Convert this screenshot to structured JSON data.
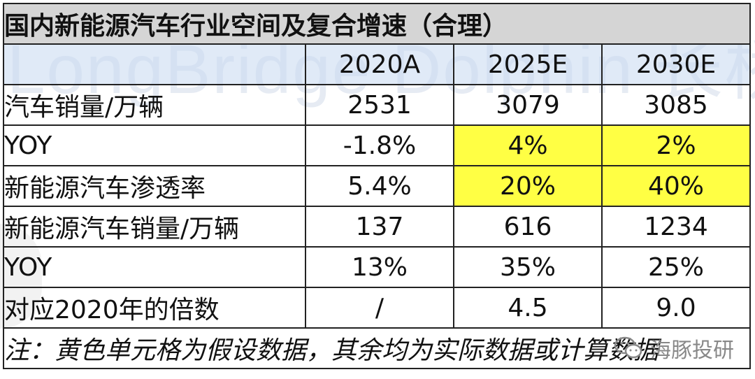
{
  "table": {
    "title": "国内新能源汽车行业空间及复合增速（合理）",
    "headers": [
      "",
      "2020A",
      "2025E",
      "2030E"
    ],
    "rows": [
      {
        "label": "汽车销量/万辆",
        "values": [
          "2531",
          "3079",
          "3085"
        ]
      },
      {
        "label": "YOY",
        "values": [
          "-1.8%",
          "4%",
          "2%"
        ]
      },
      {
        "label": "新能源汽车渗透率",
        "values": [
          "5.4%",
          "20%",
          "40%"
        ]
      },
      {
        "label": "新能源汽车销量/万辆",
        "values": [
          "137",
          "616",
          "1234"
        ]
      },
      {
        "label": "YOY",
        "values": [
          "13%",
          "35%",
          "25%"
        ]
      },
      {
        "label": "对应2020年的倍数",
        "values": [
          "/",
          "4.5",
          "9.0"
        ]
      }
    ],
    "note": "注：黄色单元格为假设数据，其余均为实际数据或计算数据",
    "highlight_color": "#ffff44",
    "red_color": "#e8212b"
  },
  "logo": {
    "text": "海豚投研",
    "icon": "wechat-logo-icon"
  },
  "watermark": {
    "text": "LongBridge Dolphin 长桥海豚投研"
  }
}
